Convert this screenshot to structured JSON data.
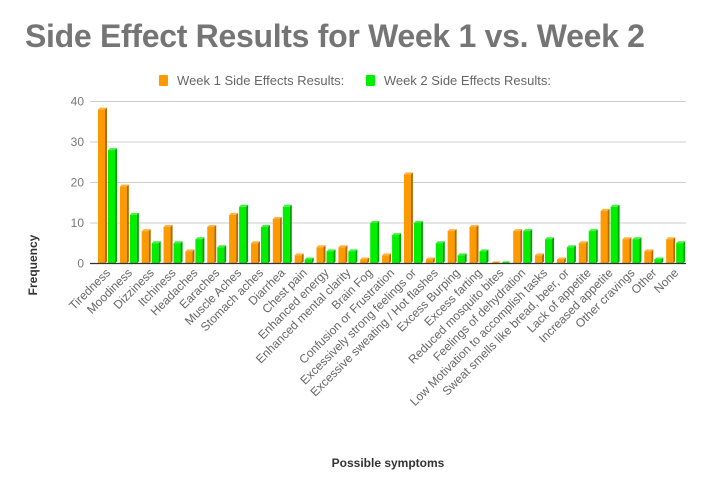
{
  "chart_data": {
    "type": "bar",
    "title": "Side Effect Results for Week 1 vs. Week 2",
    "xlabel": "Possible symptoms",
    "ylabel": "Frequency",
    "ylim": [
      0,
      40
    ],
    "yticks": [
      0,
      10,
      20,
      30,
      40
    ],
    "grid": true,
    "legend_position": "top",
    "categories": [
      "Tiredness",
      "Moodiness",
      "Dizziness",
      "Itchiness",
      "Headaches",
      "Earaches",
      "Muscle Aches",
      "Stomach aches",
      "Diarrhea",
      "Chest pain",
      "Enhanced energy",
      "Enhanced mental clarity",
      "Brain Fog",
      "Confusion or Frustration",
      "Excessively strong feelings or",
      "Excessive sweating / Hot flashes",
      "Excess Burping",
      "Excess farting",
      "Reduced mosquito bites",
      "Feelings of dehydration",
      "Low Motivation to accomplish tasks",
      "Sweat smells like bread, beer, or",
      "Lack of appetite",
      "Increased appetite",
      "Other cravings",
      "Other",
      "None"
    ],
    "series": [
      {
        "name": "Week 1 Side Effects Results:",
        "color": "#ff9900",
        "shade": "#b36b00",
        "values": [
          38,
          19,
          8,
          9,
          3,
          9,
          12,
          5,
          11,
          2,
          4,
          4,
          1,
          2,
          22,
          1,
          8,
          9,
          0,
          8,
          2,
          1,
          5,
          13,
          6,
          3,
          6
        ]
      },
      {
        "name": "Week 2 Side Effects Results:",
        "color": "#00ee00",
        "shade": "#00a300",
        "values": [
          28,
          12,
          5,
          5,
          6,
          4,
          14,
          9,
          14,
          1,
          3,
          3,
          10,
          7,
          10,
          5,
          2,
          3,
          0,
          8,
          6,
          4,
          8,
          14,
          6,
          1,
          5
        ]
      }
    ]
  }
}
